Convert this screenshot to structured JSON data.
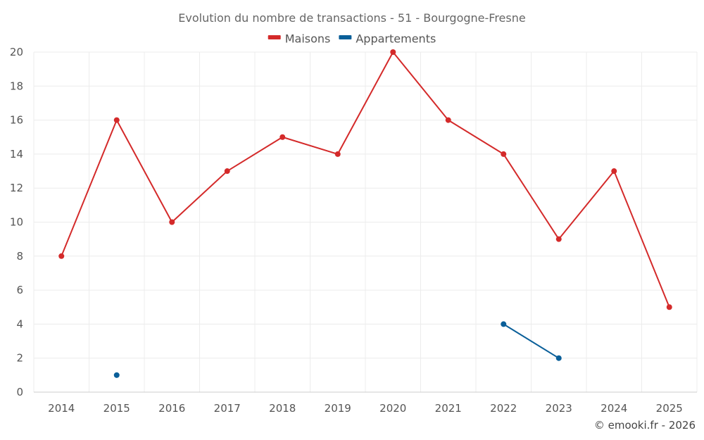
{
  "chart_data": {
    "type": "line",
    "title": "Evolution du nombre de transactions - 51 - Bourgogne-Fresne",
    "categories": [
      "2014",
      "2015",
      "2016",
      "2017",
      "2018",
      "2019",
      "2020",
      "2021",
      "2022",
      "2023",
      "2024",
      "2025"
    ],
    "ylim": [
      0,
      20
    ],
    "yticks": [
      0,
      2,
      4,
      6,
      8,
      10,
      12,
      14,
      16,
      18,
      20
    ],
    "grid": true,
    "legend_position": "top-center",
    "series": [
      {
        "name": "Maisons",
        "color": "#d42a2a",
        "values": [
          8,
          16,
          10,
          13,
          15,
          14,
          20,
          16,
          14,
          9,
          13,
          5
        ]
      },
      {
        "name": "Appartements",
        "color": "#0a5f99",
        "values": [
          null,
          1,
          null,
          null,
          null,
          null,
          null,
          null,
          4,
          2,
          null,
          null
        ]
      }
    ],
    "credit": "© emooki.fr - 2026"
  }
}
